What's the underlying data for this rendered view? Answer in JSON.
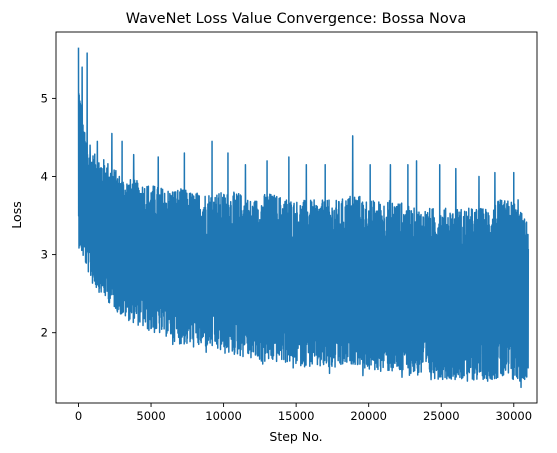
{
  "chart_data": {
    "type": "line",
    "title": "WaveNet Loss Value Convergence: Bossa Nova",
    "xlabel": "Step No.",
    "ylabel": "Loss",
    "xlim": [
      -1550,
      31600
    ],
    "ylim": [
      1.1,
      5.85
    ],
    "xticks": [
      0,
      5000,
      10000,
      15000,
      20000,
      25000,
      30000
    ],
    "yticks": [
      2,
      3,
      4,
      5
    ],
    "grid": false,
    "legend": "none",
    "series": [
      {
        "color": "#1f77b4",
        "x": [
          0,
          300,
          600,
          1000,
          2000,
          3000,
          4000,
          5000,
          6000,
          7000,
          8000,
          9000,
          10000,
          11000,
          12000,
          13000,
          14000,
          15000,
          16000,
          17000,
          18000,
          19000,
          20000,
          21000,
          22000,
          23000,
          24000,
          25000,
          26000,
          27000,
          28000,
          29000,
          30000,
          31000
        ],
        "low": [
          3.1,
          2.95,
          2.8,
          2.6,
          2.4,
          2.2,
          2.1,
          2.0,
          1.95,
          1.85,
          1.8,
          1.8,
          1.72,
          1.7,
          1.65,
          1.6,
          1.62,
          1.58,
          1.55,
          1.52,
          1.52,
          1.6,
          1.5,
          1.5,
          1.47,
          1.45,
          1.42,
          1.4,
          1.4,
          1.38,
          1.4,
          1.4,
          1.35,
          1.4
        ],
        "high": [
          5.3,
          4.7,
          4.4,
          4.3,
          4.2,
          4.0,
          3.95,
          3.9,
          3.85,
          3.85,
          3.8,
          3.8,
          3.8,
          3.8,
          3.7,
          3.8,
          3.75,
          3.7,
          3.7,
          3.7,
          3.7,
          3.8,
          3.7,
          3.7,
          3.7,
          3.6,
          3.6,
          3.6,
          3.6,
          3.6,
          3.6,
          3.7,
          3.7,
          3.4
        ],
        "spikes": [
          [
            0,
            5.65
          ],
          [
            250,
            5.4
          ],
          [
            600,
            5.58
          ],
          [
            800,
            4.4
          ],
          [
            1300,
            4.45
          ],
          [
            2300,
            4.55
          ],
          [
            3000,
            4.45
          ],
          [
            3800,
            4.28
          ],
          [
            5500,
            4.25
          ],
          [
            7300,
            4.3
          ],
          [
            9200,
            4.45
          ],
          [
            10300,
            4.3
          ],
          [
            11500,
            4.15
          ],
          [
            13000,
            4.2
          ],
          [
            14500,
            4.25
          ],
          [
            15700,
            4.15
          ],
          [
            17000,
            4.15
          ],
          [
            18900,
            4.52
          ],
          [
            20100,
            4.15
          ],
          [
            21500,
            4.15
          ],
          [
            22700,
            4.15
          ],
          [
            23300,
            4.2
          ],
          [
            24900,
            4.15
          ],
          [
            26000,
            4.1
          ],
          [
            27600,
            4.0
          ],
          [
            28700,
            4.05
          ],
          [
            30000,
            4.05
          ],
          [
            30300,
            3.7
          ]
        ],
        "dips": [
          [
            6500,
            1.85
          ],
          [
            8800,
            1.75
          ],
          [
            12700,
            1.6
          ],
          [
            14800,
            1.55
          ],
          [
            17300,
            1.48
          ],
          [
            19600,
            1.45
          ],
          [
            22300,
            1.43
          ],
          [
            24300,
            1.4
          ],
          [
            26800,
            1.38
          ],
          [
            28200,
            1.38
          ],
          [
            30500,
            1.3
          ]
        ]
      }
    ]
  }
}
